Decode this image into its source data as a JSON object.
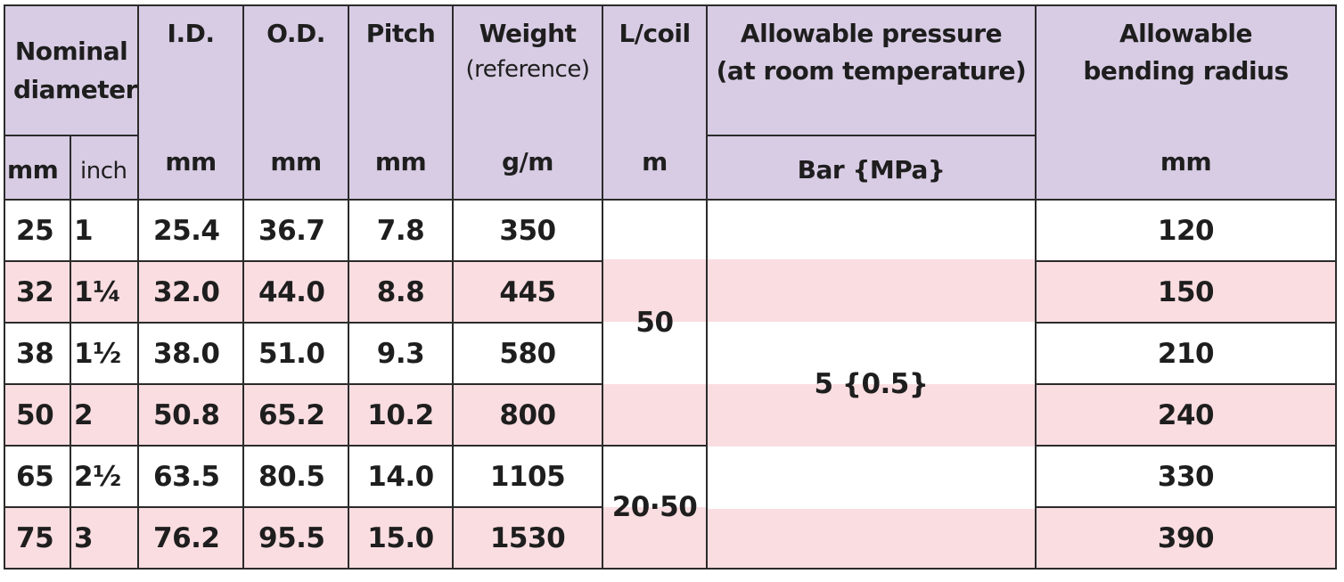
{
  "header": {
    "nominal_diameter": "Nominal diameter",
    "id": "I.D.",
    "od": "O.D.",
    "pitch": "Pitch",
    "weight": "Weight",
    "weight_sub": "(reference)",
    "l_coil": "L/coil",
    "pressure_line1": "Allowable pressure",
    "pressure_line2": "(at room temperature)",
    "bending_line1": "Allowable",
    "bending_line2": "bending radius"
  },
  "units": {
    "mm": "mm",
    "inch": "inch",
    "id": "mm",
    "od": "mm",
    "pitch": "mm",
    "weight": "g/m",
    "l_coil": "m",
    "pressure": "Bar {MPa}",
    "bending": "mm"
  },
  "rows": [
    {
      "mm": "25",
      "inch": "1",
      "id": "25.4",
      "od": "36.7",
      "pitch": "7.8",
      "weight": "350",
      "bending": "120"
    },
    {
      "mm": "32",
      "inch": "1¼",
      "id": "32.0",
      "od": "44.0",
      "pitch": "8.8",
      "weight": "445",
      "bending": "150"
    },
    {
      "mm": "38",
      "inch": "1½",
      "id": "38.0",
      "od": "51.0",
      "pitch": "9.3",
      "weight": "580",
      "bending": "210"
    },
    {
      "mm": "50",
      "inch": "2",
      "id": "50.8",
      "od": "65.2",
      "pitch": "10.2",
      "weight": "800",
      "bending": "240"
    },
    {
      "mm": "65",
      "inch": "2½",
      "id": "63.5",
      "od": "80.5",
      "pitch": "14.0",
      "weight": "1105",
      "bending": "330"
    },
    {
      "mm": "75",
      "inch": "3",
      "id": "76.2",
      "od": "95.5",
      "pitch": "15.0",
      "weight": "1530",
      "bending": "390"
    }
  ],
  "merged": {
    "l_coil_group1": "50",
    "l_coil_group2": "20·50",
    "pressure": "5 {0.5}"
  },
  "colors": {
    "header_bg": "#d8cce4",
    "row_pink": "#fadde1",
    "row_white": "#ffffff",
    "border": "#2b2b2b"
  }
}
